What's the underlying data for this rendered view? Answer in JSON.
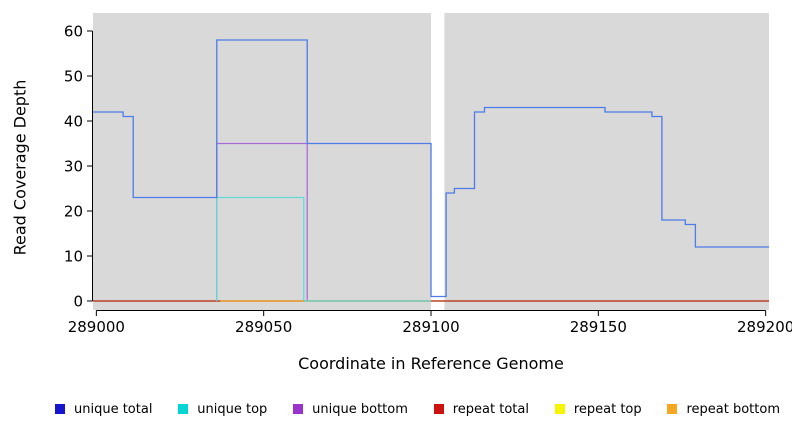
{
  "chart_data": {
    "type": "line",
    "title": "",
    "xlabel": "Coordinate in Reference Genome",
    "ylabel": "Read Coverage Depth",
    "xlim": [
      288999,
      289201
    ],
    "ylim": [
      -2,
      64
    ],
    "x_ticks": [
      289000,
      289050,
      289100,
      289150,
      289200
    ],
    "y_ticks": [
      0,
      10,
      20,
      30,
      40,
      50,
      60
    ],
    "panel_bg": "#d9d9d9",
    "axis_color": "#000000",
    "grid": false,
    "legend_position": "bottom",
    "gap_band": {
      "x0": 289100,
      "x1": 289104,
      "color": "#ffffff"
    },
    "draw_order": [
      4,
      3,
      2,
      1,
      5,
      0
    ],
    "series": [
      {
        "name": "unique-total",
        "label": "unique total",
        "swatch_color": "#1515ce",
        "line_color": "#4d7be8",
        "points": [
          [
            288999,
            42
          ],
          [
            289008,
            42
          ],
          [
            289008,
            41
          ],
          [
            289011,
            41
          ],
          [
            289011,
            23
          ],
          [
            289036,
            23
          ],
          [
            289036,
            58
          ],
          [
            289063,
            58
          ],
          [
            289063,
            35
          ],
          [
            289100,
            35
          ],
          [
            289100,
            1
          ],
          [
            289104.5,
            1
          ],
          [
            289104.5,
            24
          ],
          [
            289107,
            24
          ],
          [
            289107,
            25
          ],
          [
            289113,
            25
          ],
          [
            289113,
            42
          ],
          [
            289116,
            42
          ],
          [
            289116,
            43
          ],
          [
            289152,
            43
          ],
          [
            289152,
            42
          ],
          [
            289166,
            42
          ],
          [
            289166,
            41
          ],
          [
            289169,
            41
          ],
          [
            289169,
            18
          ],
          [
            289176,
            18
          ],
          [
            289176,
            17
          ],
          [
            289179,
            17
          ],
          [
            289179,
            12
          ],
          [
            289201,
            12
          ]
        ]
      },
      {
        "name": "unique-top",
        "label": "unique top",
        "swatch_color": "#00d5d5",
        "line_color": "#63dbd4",
        "points": [
          [
            289036,
            0
          ],
          [
            289036,
            23
          ],
          [
            289062,
            23
          ],
          [
            289062,
            0
          ],
          [
            289100,
            0
          ]
        ]
      },
      {
        "name": "unique-bottom",
        "label": "unique bottom",
        "swatch_color": "#9933cc",
        "line_color": "#a86cd9",
        "points": [
          [
            289036,
            0
          ],
          [
            289036,
            35
          ],
          [
            289063,
            35
          ],
          [
            289063,
            0
          ]
        ]
      },
      {
        "name": "repeat-total",
        "label": "repeat total",
        "swatch_color": "#cc1111",
        "line_color": "#b22222",
        "points": [
          [
            288999,
            0
          ],
          [
            289201,
            0
          ]
        ]
      },
      {
        "name": "repeat-top",
        "label": "repeat top",
        "swatch_color": "#f5f500",
        "line_color": "#e8e800",
        "points": [
          [
            288999,
            0
          ],
          [
            289201,
            0
          ]
        ]
      },
      {
        "name": "repeat-bottom",
        "label": "repeat bottom",
        "swatch_color": "#f5a623",
        "line_color": "#f0a030",
        "points": [
          [
            289037,
            0
          ],
          [
            289062,
            0
          ]
        ]
      }
    ]
  }
}
